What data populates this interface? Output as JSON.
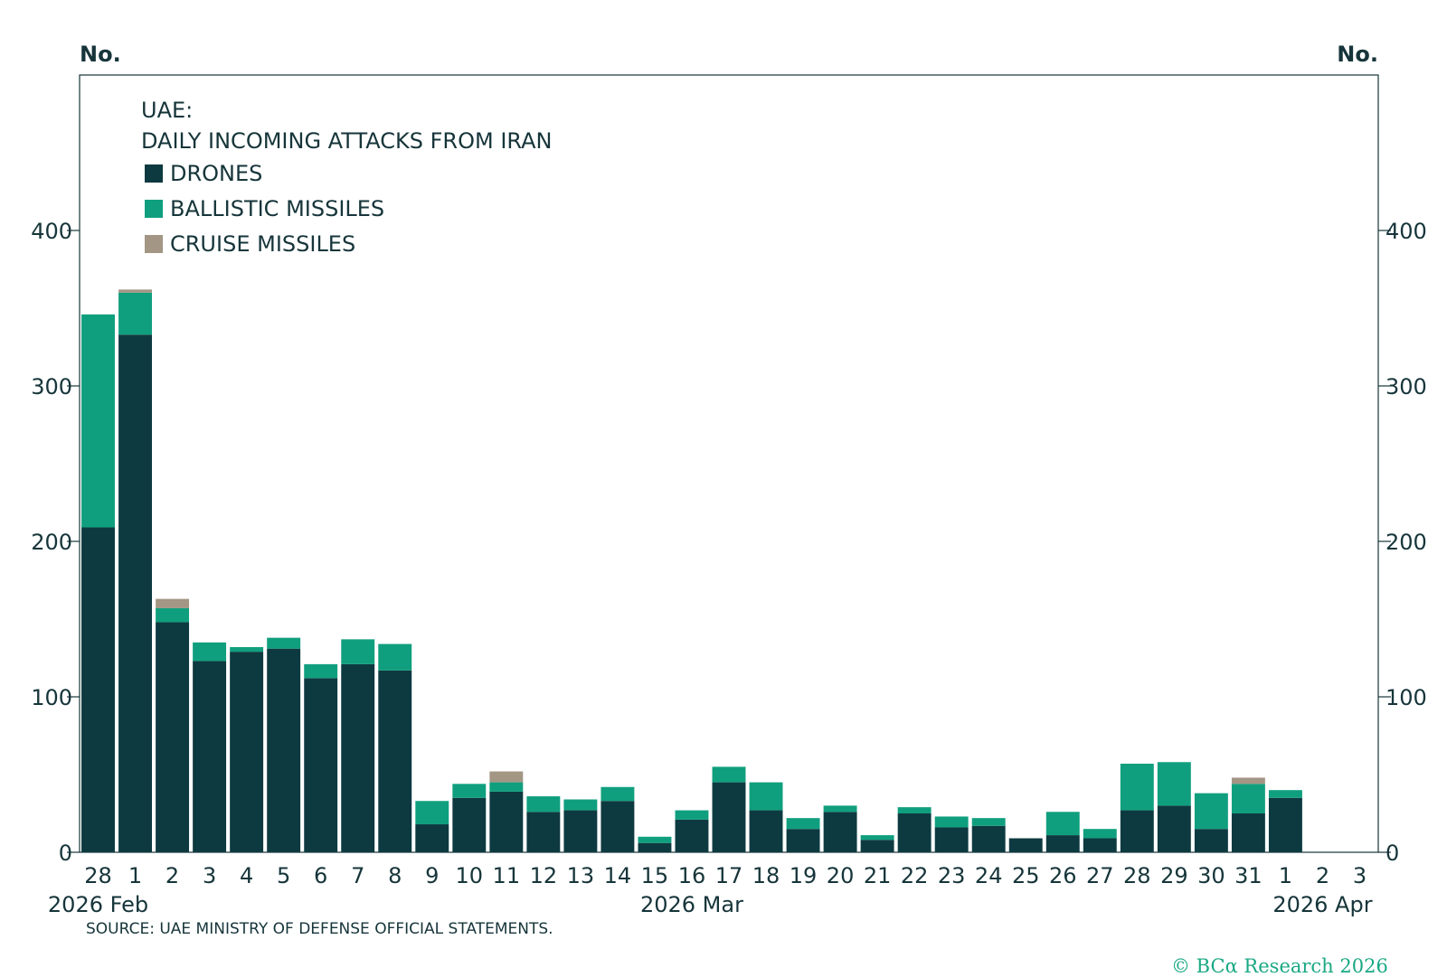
{
  "source": "SOURCE: UAE MINISTRY OF DEFENSE OFFICIAL STATEMENTS.",
  "credit": "© BCα Research 2026",
  "colors": {
    "drones": "#0d3a40",
    "ballistic": "#109f7e",
    "cruise": "#a39684",
    "axis": "#16353a"
  },
  "chart_data": {
    "type": "bar",
    "stacked": true,
    "title": "UAE:",
    "subtitle": "DAILY INCOMING ATTACKS FROM IRAN",
    "ylabel_left": "No.",
    "ylabel_right": "No.",
    "ylim": [
      0,
      500
    ],
    "yticks": [
      0,
      100,
      200,
      300,
      400
    ],
    "legend_position": "top-left",
    "categories": [
      "28",
      "1",
      "2",
      "3",
      "4",
      "5",
      "6",
      "7",
      "8",
      "9",
      "10",
      "11",
      "12",
      "13",
      "14",
      "15",
      "16",
      "17",
      "18",
      "19",
      "20",
      "21",
      "22",
      "23",
      "24",
      "25",
      "26",
      "27",
      "28",
      "29",
      "30",
      "31",
      "1",
      "2",
      "3"
    ],
    "month_labels": [
      {
        "label": "2026 Feb",
        "index": 0
      },
      {
        "label": "2026 Mar",
        "index": 16
      },
      {
        "label": "2026 Apr",
        "index": 33
      }
    ],
    "series": [
      {
        "name": "DRONES",
        "color": "#0d3a40",
        "values": [
          209,
          333,
          148,
          123,
          129,
          131,
          112,
          121,
          117,
          18,
          35,
          39,
          26,
          27,
          33,
          6,
          21,
          45,
          27,
          15,
          26,
          8,
          25,
          16,
          17,
          9,
          11,
          9,
          27,
          30,
          15,
          25,
          35,
          0,
          0
        ]
      },
      {
        "name": "BALLISTIC MISSILES",
        "color": "#109f7e",
        "values": [
          137,
          27,
          9,
          12,
          3,
          7,
          9,
          16,
          17,
          15,
          9,
          6,
          10,
          7,
          9,
          4,
          6,
          10,
          18,
          7,
          4,
          3,
          4,
          7,
          5,
          0,
          15,
          6,
          30,
          28,
          23,
          19,
          5,
          0,
          0
        ]
      },
      {
        "name": "CRUISE MISSILES",
        "color": "#a39684",
        "values": [
          0,
          2,
          6,
          0,
          0,
          0,
          0,
          0,
          0,
          0,
          0,
          7,
          0,
          0,
          0,
          0,
          0,
          0,
          0,
          0,
          0,
          0,
          0,
          0,
          0,
          0,
          0,
          0,
          0,
          0,
          0,
          4,
          0,
          0,
          0
        ]
      }
    ]
  }
}
